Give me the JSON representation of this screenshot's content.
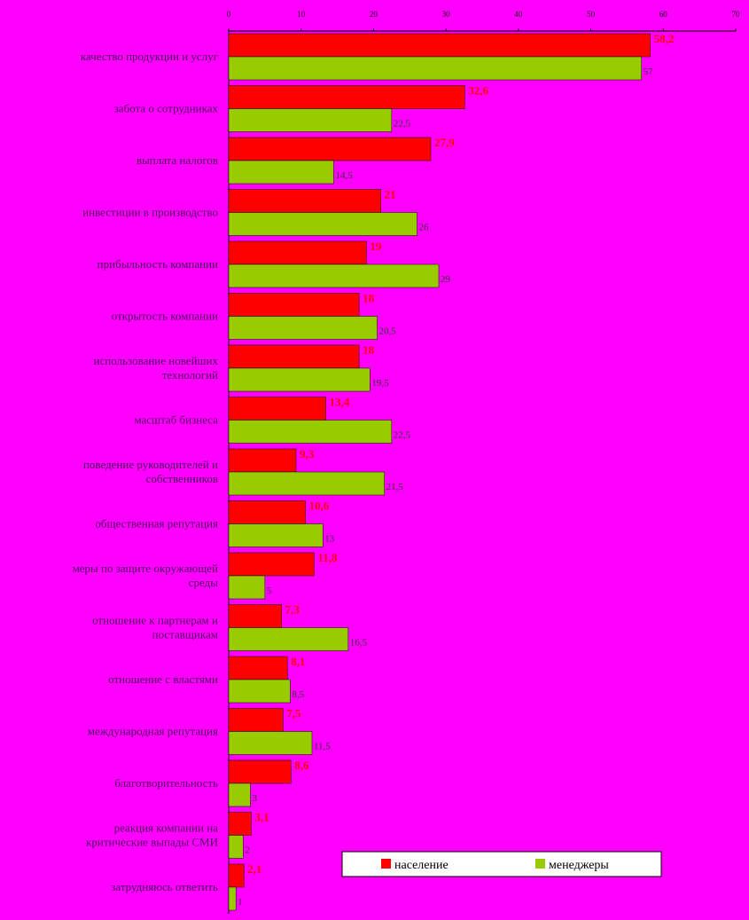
{
  "chart_data": {
    "type": "bar",
    "orientation": "horizontal",
    "xlim": [
      0,
      70
    ],
    "x_ticks": [
      "0",
      "10",
      "20",
      "30",
      "40",
      "50",
      "60",
      "70"
    ],
    "x_ticks_position": "top",
    "grid": false,
    "legend_position": "bottom-right",
    "categories": [
      [
        "качество продукции и услуг"
      ],
      [
        "забота о сотрудниках"
      ],
      [
        "выплата налогов"
      ],
      [
        "инвестиции в производство"
      ],
      [
        "прибыльность компании"
      ],
      [
        "открытость компании"
      ],
      [
        "использование новейших",
        "технологий"
      ],
      [
        "масштаб бизнеса"
      ],
      [
        "поведение руководителей и",
        "собственников"
      ],
      [
        "общественная репутация"
      ],
      [
        "меры по защите окружающей",
        "среды"
      ],
      [
        "отношение к партнерам и",
        "поставщикам"
      ],
      [
        "отношение с властями"
      ],
      [
        "международная репутация"
      ],
      [
        "благотворительность"
      ],
      [
        "реакция компании на",
        "критические выпады СМИ"
      ],
      [
        "затрудняюсь ответить"
      ]
    ],
    "series": [
      {
        "name": "население",
        "color": "#ff0000",
        "values": [
          58.2,
          32.6,
          27.9,
          21,
          19,
          18,
          18,
          13.4,
          9.3,
          10.6,
          11.8,
          7.3,
          8.1,
          7.5,
          8.6,
          3.1,
          2.1
        ],
        "labels": [
          "58,2",
          "32,6",
          "27,9",
          "21",
          "19",
          "18",
          "18",
          "13,4",
          "9,3",
          "10,6",
          "11,8",
          "7,3",
          "8,1",
          "7,5",
          "8,6",
          "3,1",
          "2,1"
        ]
      },
      {
        "name": "менеджеры",
        "color": "#99cc00",
        "values": [
          57,
          22.5,
          14.5,
          26,
          29,
          20.5,
          19.5,
          22.5,
          21.5,
          13,
          5,
          16.5,
          8.5,
          11.5,
          3,
          2,
          1
        ],
        "labels": [
          "57",
          "22,5",
          "14,5",
          "26",
          "29",
          "20,5",
          "19,5",
          "22,5",
          "21,5",
          "13",
          "5",
          "16,5",
          "8,5",
          "11,5",
          "3",
          "2",
          "1"
        ]
      }
    ]
  },
  "legend": {
    "items": [
      {
        "label": "население",
        "color": "#ff0000"
      },
      {
        "label": "менеджеры",
        "color": "#99cc00"
      }
    ]
  }
}
